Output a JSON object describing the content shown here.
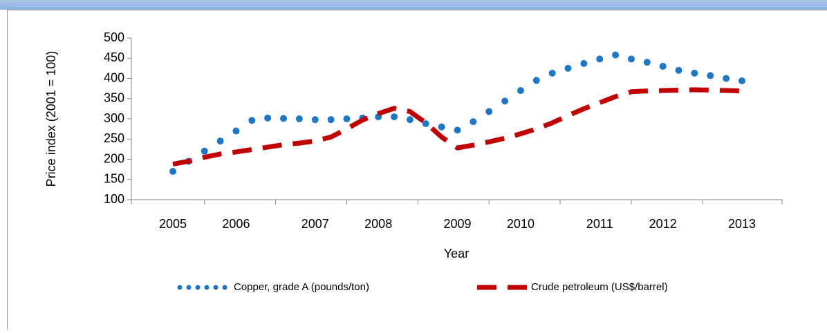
{
  "chart_data": {
    "type": "line",
    "categories": [
      "2005",
      null,
      null,
      null,
      "2006",
      null,
      null,
      null,
      null,
      "2007",
      null,
      null,
      null,
      "2008",
      null,
      null,
      null,
      null,
      "2009",
      null,
      null,
      null,
      "2010",
      null,
      null,
      null,
      null,
      "2011",
      null,
      null,
      null,
      "2012",
      null,
      null,
      null,
      null,
      "2013"
    ],
    "series": [
      {
        "name": "Copper, grade A (pounds/ton)",
        "color": "#1f77c4",
        "style": "dotted",
        "values": [
          170,
          195,
          220,
          245,
          270,
          296,
          302,
          301,
          300,
          298,
          298,
          300,
          302,
          305,
          305,
          298,
          288,
          280,
          272,
          293,
          318,
          344,
          370,
          395,
          413,
          425,
          437,
          448,
          458,
          448,
          440,
          430,
          420,
          413,
          407,
          400,
          394
        ]
      },
      {
        "name": "Crude petroleum (US$/barrel)",
        "color": "#c00000",
        "style": "dashed",
        "values": [
          188,
          195,
          205,
          213,
          218,
          224,
          230,
          236,
          240,
          245,
          255,
          275,
          297,
          313,
          326,
          318,
          290,
          255,
          228,
          235,
          243,
          252,
          263,
          275,
          290,
          308,
          325,
          340,
          355,
          367,
          369,
          370,
          371,
          372,
          371,
          370,
          369
        ]
      }
    ],
    "x_label": "Year",
    "y_label": "Price index  (2001 = 100)",
    "ylim": [
      100,
      500
    ],
    "yticks": [
      100,
      150,
      200,
      250,
      300,
      350,
      400,
      450,
      500
    ],
    "grid": false,
    "legend": "bottom"
  }
}
